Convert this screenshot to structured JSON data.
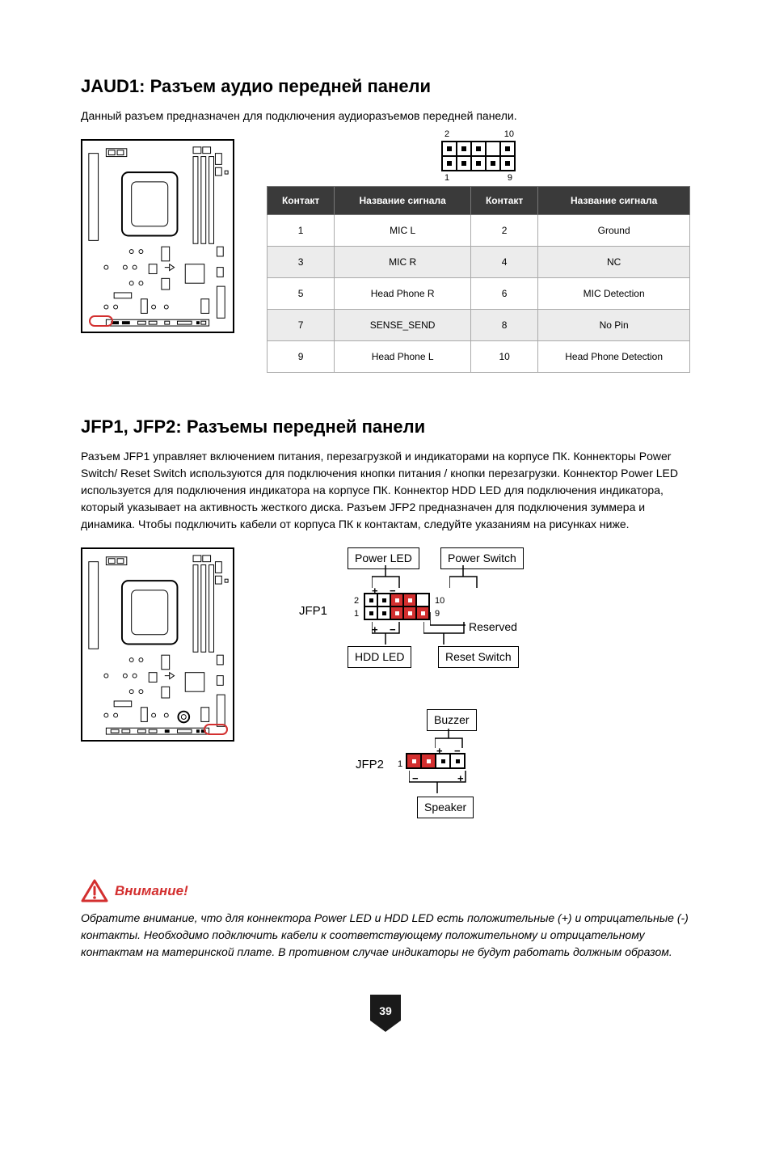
{
  "jaud1": {
    "heading": "JAUD1: Разъем аудио передней панели",
    "desc": "Данный разъем предназначен для подключения аудиоразъемов передней панели.",
    "pin_labels": {
      "tl": "2",
      "tr": "10",
      "bl": "1",
      "br": "9"
    },
    "table": {
      "headers": [
        "Контакт",
        "Название сигнала",
        "Контакт",
        "Название сигнала"
      ],
      "rows": [
        [
          "1",
          "MIC L",
          "2",
          "Ground"
        ],
        [
          "3",
          "MIC R",
          "4",
          "NC"
        ],
        [
          "5",
          "Head Phone R",
          "6",
          "MIC Detection"
        ],
        [
          "7",
          "SENSE_SEND",
          "8",
          "No Pin"
        ],
        [
          "9",
          "Head Phone L",
          "10",
          "Head Phone Detection"
        ]
      ],
      "alt_rows": [
        false,
        true,
        false,
        true,
        false
      ],
      "header_bg": "#3a3a3a",
      "header_fg": "#ffffff",
      "alt_bg": "#ececec"
    }
  },
  "jfp": {
    "heading": "JFP1, JFP2: Разъемы передней панели",
    "desc": "Разъем JFP1 управляет включением питания, перезагрузкой и индикаторами на корпусе ПК. Коннекторы Power Switch/ Reset Switch используются для подключения кнопки питания / кнопки перезагрузки. Коннектор Power LED используется для подключения индикатора на корпусе ПК. Коннектор HDD LED для подключения индикатора, который указывает на активность жесткого диска. Разъем JFP2 предназначен для подключения зуммера и динамика. Чтобы подключить кабели от корпуса ПК к контактам, следуйте указаниям на рисунках ниже.",
    "jfp1": {
      "name": "JFP1",
      "power_led": "Power LED",
      "power_switch": "Power Switch",
      "hdd_led": "HDD LED",
      "reset_switch": "Reset Switch",
      "reserved": "Reserved",
      "pins": {
        "tl": "2",
        "tr": "10",
        "bl": "1",
        "br": "9"
      }
    },
    "jfp2": {
      "name": "JFP2",
      "buzzer": "Buzzer",
      "speaker": "Speaker",
      "pin1": "1"
    }
  },
  "warning": {
    "title": "Внимание!",
    "text": "Обратите внимание, что для коннектора Power LED и HDD LED есть положительные (+) и отрицательные (-) контакты. Необходимо подключить кабели к соответствующему положительному и отрицательному контактам на материнской плате. В противном случае индикаторы не будут работать должным образом.",
    "color": "#d32f2f"
  },
  "page_number": "39"
}
